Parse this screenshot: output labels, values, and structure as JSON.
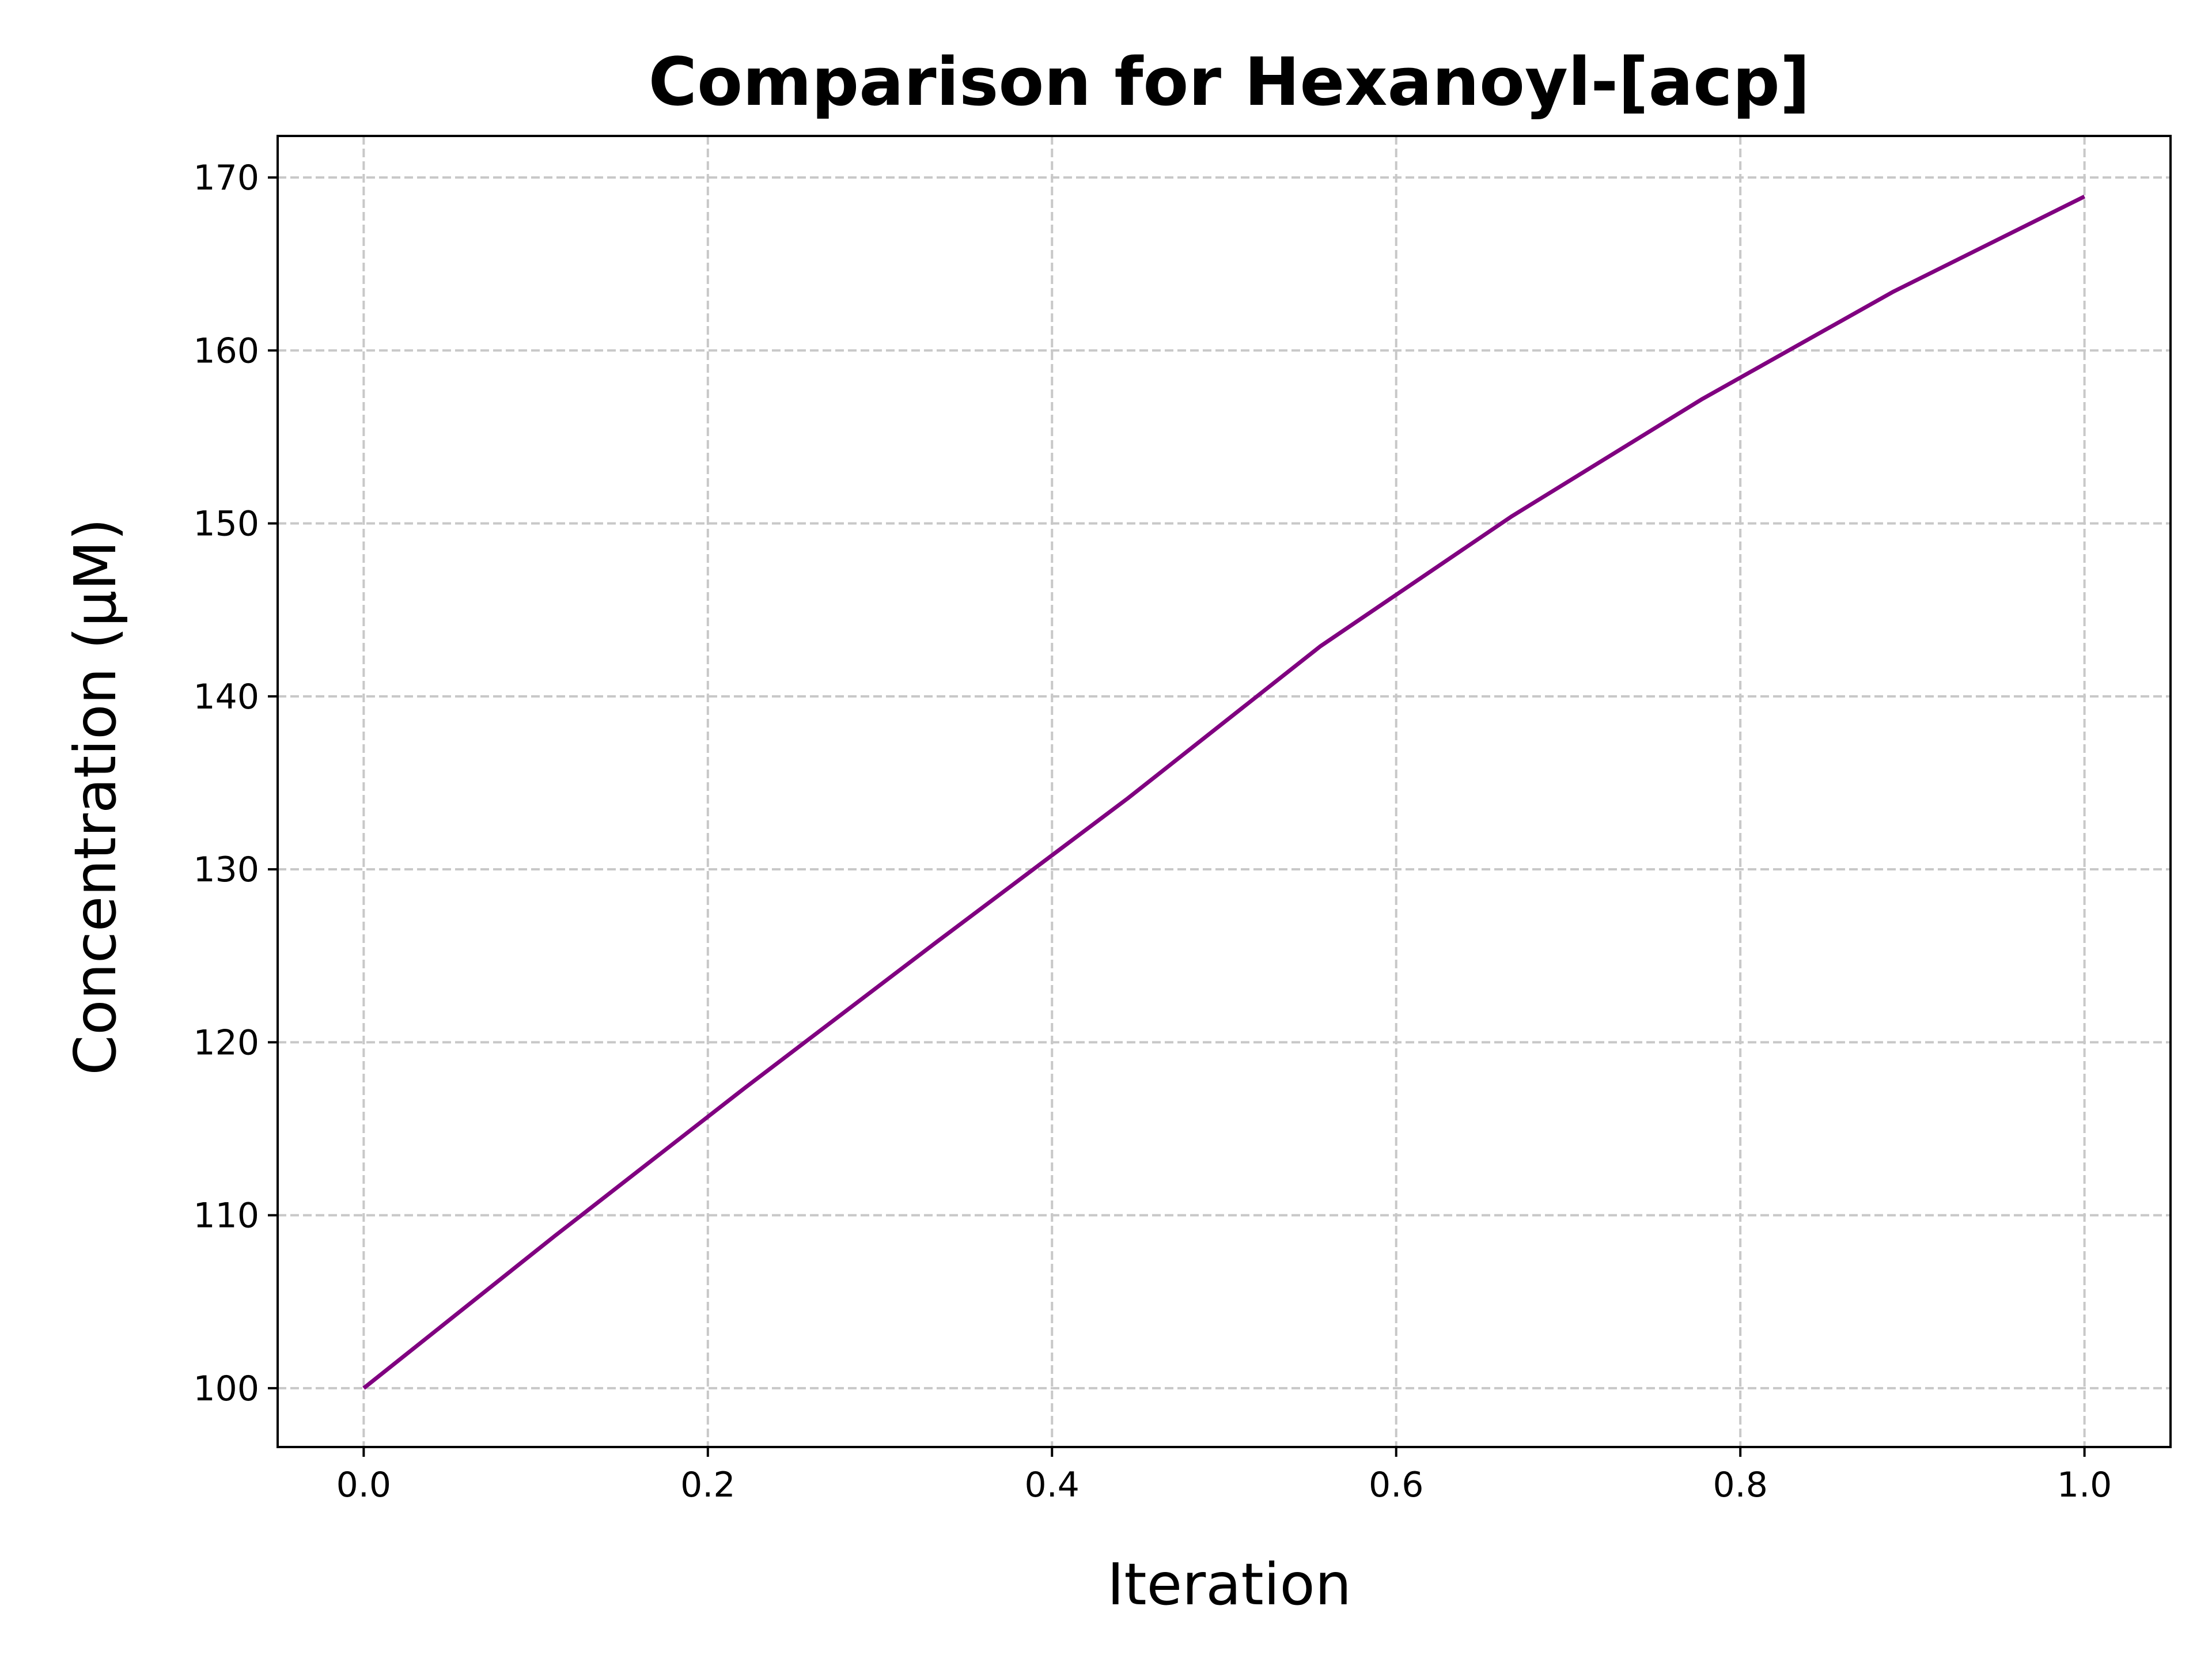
{
  "chart_data": {
    "type": "line",
    "title": "Comparison for Hexanoyl-[acp]",
    "xlabel": "Iteration",
    "ylabel": "Concentration (μM)",
    "xlim": [
      -0.05,
      1.05
    ],
    "ylim": [
      96.6,
      172.4
    ],
    "x_ticks": [
      0.0,
      0.2,
      0.4,
      0.6,
      0.8,
      1.0
    ],
    "x_tick_labels": [
      "0.0",
      "0.2",
      "0.4",
      "0.6",
      "0.8",
      "1.0"
    ],
    "y_ticks": [
      100,
      110,
      120,
      130,
      140,
      150,
      160,
      170
    ],
    "y_tick_labels": [
      "100",
      "110",
      "120",
      "130",
      "140",
      "150",
      "160",
      "170"
    ],
    "grid": true,
    "colors": {
      "line": "#800080"
    },
    "series": [
      {
        "x": [
          0.0,
          0.111,
          0.222,
          0.333,
          0.444,
          0.556,
          0.667,
          0.778,
          0.889,
          1.0
        ],
        "y": [
          100.0,
          108.8,
          117.4,
          125.8,
          134.1,
          142.9,
          150.4,
          157.2,
          163.4,
          168.9
        ]
      }
    ]
  }
}
